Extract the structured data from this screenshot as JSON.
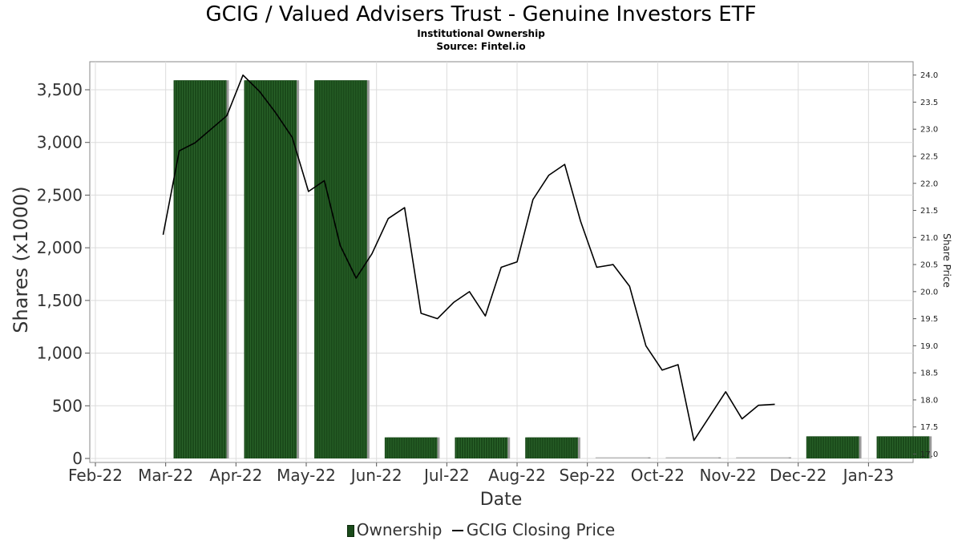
{
  "title": "GCIG / Valued Advisers Trust - Genuine Investors ETF",
  "subtitle1": "Institutional Ownership",
  "subtitle2": "Source: Fintel.io",
  "legend": {
    "ownership": "Ownership",
    "price": "GCIG Closing Price"
  },
  "colors": {
    "bar_fill": "#1a4a1a",
    "bar_shadow": "#9a9a9a",
    "price_line": "#000000",
    "grid": "#dddddd"
  },
  "chart_data": {
    "type": "bar",
    "title": "GCIG / Valued Advisers Trust - Genuine Investors ETF",
    "xlabel": "Date",
    "ylabel": "Shares (x1000)",
    "y2label": "Share Price",
    "x_ticks": [
      "Feb-22",
      "Mar-22",
      "Apr-22",
      "May-22",
      "Jun-22",
      "Jul-22",
      "Aug-22",
      "Sep-22",
      "Oct-22",
      "Nov-22",
      "Dec-22",
      "Jan-23"
    ],
    "y_ticks": [
      "0",
      "500",
      "1,000",
      "1,500",
      "2,000",
      "2,500",
      "3,000",
      "3,500"
    ],
    "y2_ticks": [
      "17.0",
      "17.5",
      "18.0",
      "18.5",
      "19.0",
      "19.5",
      "20.0",
      "20.5",
      "21.0",
      "21.5",
      "22.0",
      "22.5",
      "23.0",
      "23.5",
      "24.0"
    ],
    "ylim": [
      0,
      3650
    ],
    "y2lim": [
      16.95,
      24.15
    ],
    "grid": true,
    "legend_position": "bottom",
    "ownership": {
      "name": "Ownership",
      "periods": [
        {
          "start": "2022-02-28",
          "end": "2022-03-31",
          "value": 3590
        },
        {
          "start": "2022-03-31",
          "end": "2022-04-30",
          "value": 3590
        },
        {
          "start": "2022-04-30",
          "end": "2022-05-31",
          "value": 3590
        },
        {
          "start": "2022-05-31",
          "end": "2022-06-30",
          "value": 200
        },
        {
          "start": "2022-06-30",
          "end": "2022-07-31",
          "value": 200
        },
        {
          "start": "2022-07-31",
          "end": "2022-08-31",
          "value": 200
        },
        {
          "start": "2022-08-31",
          "end": "2022-09-30",
          "value": 0
        },
        {
          "start": "2022-09-30",
          "end": "2022-10-31",
          "value": 0
        },
        {
          "start": "2022-10-31",
          "end": "2022-11-30",
          "value": 0
        },
        {
          "start": "2022-11-30",
          "end": "2022-12-31",
          "value": 210
        },
        {
          "start": "2022-12-31",
          "end": "2023-01-31",
          "value": 210
        }
      ]
    },
    "price": {
      "name": "GCIG Closing Price",
      "points": [
        {
          "x": "2022-02-28",
          "y": 21.05
        },
        {
          "x": "2022-03-07",
          "y": 22.6
        },
        {
          "x": "2022-03-14",
          "y": 22.75
        },
        {
          "x": "2022-03-21",
          "y": 23.0
        },
        {
          "x": "2022-03-28",
          "y": 23.25
        },
        {
          "x": "2022-04-04",
          "y": 24.0
        },
        {
          "x": "2022-04-11",
          "y": 23.7
        },
        {
          "x": "2022-04-18",
          "y": 23.3
        },
        {
          "x": "2022-04-25",
          "y": 22.85
        },
        {
          "x": "2022-05-02",
          "y": 21.85
        },
        {
          "x": "2022-05-09",
          "y": 22.05
        },
        {
          "x": "2022-05-16",
          "y": 20.85
        },
        {
          "x": "2022-05-23",
          "y": 20.25
        },
        {
          "x": "2022-05-30",
          "y": 20.7
        },
        {
          "x": "2022-06-06",
          "y": 21.35
        },
        {
          "x": "2022-06-13",
          "y": 21.55
        },
        {
          "x": "2022-06-20",
          "y": 19.6
        },
        {
          "x": "2022-06-27",
          "y": 19.5
        },
        {
          "x": "2022-07-04",
          "y": 19.8
        },
        {
          "x": "2022-07-11",
          "y": 20.0
        },
        {
          "x": "2022-07-18",
          "y": 19.55
        },
        {
          "x": "2022-07-25",
          "y": 20.45
        },
        {
          "x": "2022-08-01",
          "y": 20.55
        },
        {
          "x": "2022-08-08",
          "y": 21.7
        },
        {
          "x": "2022-08-15",
          "y": 22.15
        },
        {
          "x": "2022-08-22",
          "y": 22.35
        },
        {
          "x": "2022-08-29",
          "y": 21.3
        },
        {
          "x": "2022-09-05",
          "y": 20.45
        },
        {
          "x": "2022-09-12",
          "y": 20.5
        },
        {
          "x": "2022-09-19",
          "y": 20.1
        },
        {
          "x": "2022-09-26",
          "y": 19.0
        },
        {
          "x": "2022-10-03",
          "y": 18.55
        },
        {
          "x": "2022-10-10",
          "y": 18.65
        },
        {
          "x": "2022-10-17",
          "y": 17.25
        },
        {
          "x": "2022-10-24",
          "y": 17.7
        },
        {
          "x": "2022-10-31",
          "y": 18.15
        },
        {
          "x": "2022-11-07",
          "y": 17.65
        },
        {
          "x": "2022-11-14",
          "y": 17.9
        },
        {
          "x": "2022-11-21",
          "y": 17.92
        }
      ]
    }
  }
}
